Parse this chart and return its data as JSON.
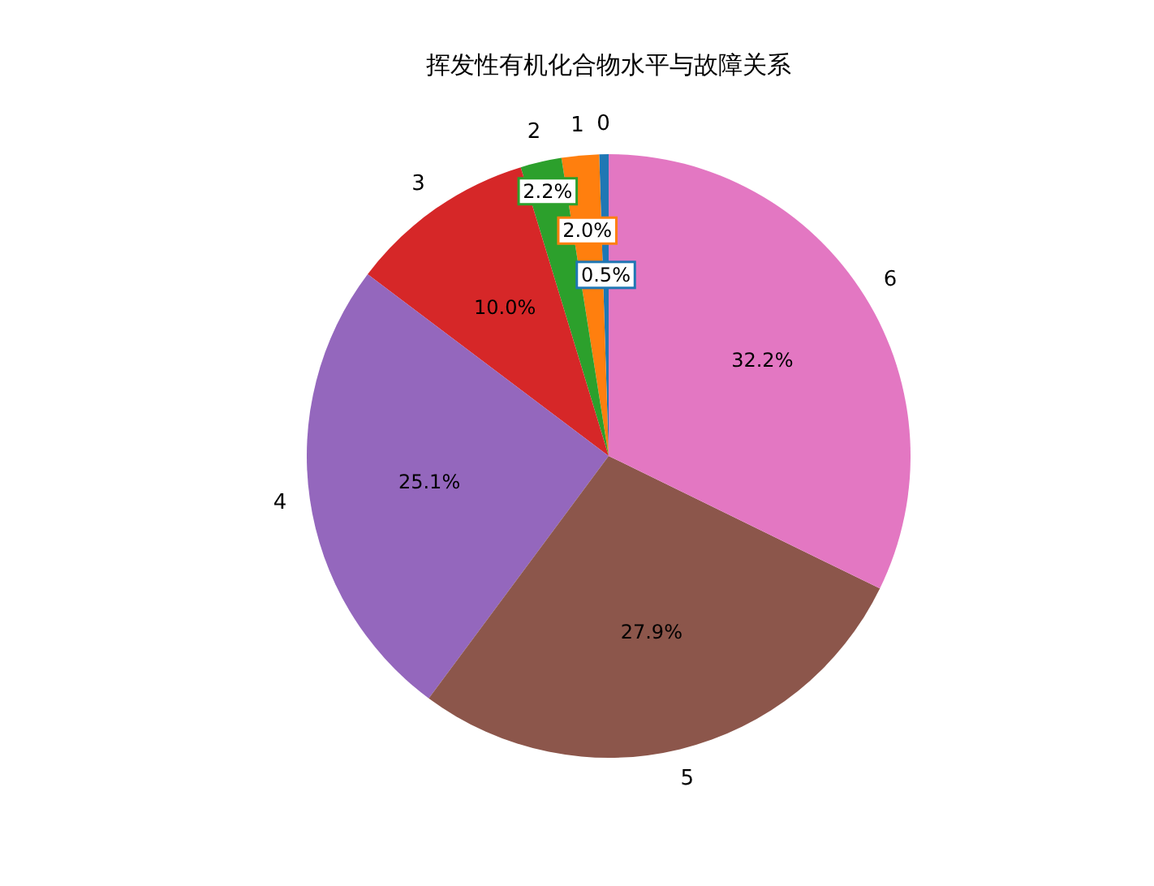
{
  "chart_data": {
    "type": "pie",
    "title": "挥发性有机化合物水平与故障关系",
    "categories": [
      "0",
      "1",
      "2",
      "3",
      "4",
      "5",
      "6"
    ],
    "values": [
      0.5,
      2.0,
      2.2,
      10.0,
      25.1,
      27.9,
      32.2
    ],
    "colors": [
      "#1f77b4",
      "#ff7f0e",
      "#2ca02c",
      "#d62728",
      "#9467bd",
      "#8c564b",
      "#e377c2"
    ],
    "value_labels": [
      "0.5%",
      "2.0%",
      "2.2%",
      "10.0%",
      "25.1%",
      "27.9%",
      "32.2%"
    ]
  }
}
